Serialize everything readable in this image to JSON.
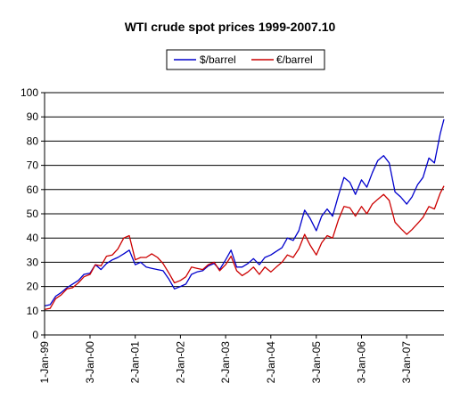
{
  "chart_data": {
    "type": "line",
    "title": "WTI crude spot prices 1999-2007.10",
    "xlabel": "",
    "ylabel": "",
    "ylim": [
      0,
      100
    ],
    "y_ticks": [
      "0",
      "10",
      "20",
      "30",
      "40",
      "50",
      "60",
      "70",
      "80",
      "90",
      "100"
    ],
    "x_ticks": [
      "1-Jan-99",
      "3-Jan-00",
      "2-Jan-01",
      "2-Jan-02",
      "2-Jan-03",
      "2-Jan-04",
      "3-Jan-05",
      "3-Jan-06",
      "3-Jan-07"
    ],
    "grid": "horizontal",
    "legend_position": "top-center",
    "x_dates": [
      "1999-01-01",
      "1999-02-15",
      "1999-04-01",
      "1999-05-15",
      "1999-07-01",
      "1999-08-15",
      "1999-10-01",
      "1999-11-15",
      "2000-01-03",
      "2000-02-15",
      "2000-04-01",
      "2000-05-15",
      "2000-07-01",
      "2000-08-15",
      "2000-10-01",
      "2000-11-15",
      "2001-01-02",
      "2001-02-15",
      "2001-04-01",
      "2001-05-15",
      "2001-07-01",
      "2001-08-15",
      "2001-10-01",
      "2001-11-15",
      "2002-01-02",
      "2002-02-15",
      "2002-04-01",
      "2002-05-15",
      "2002-07-01",
      "2002-08-15",
      "2002-10-01",
      "2002-11-15",
      "2003-01-02",
      "2003-02-15",
      "2003-04-01",
      "2003-05-15",
      "2003-07-01",
      "2003-08-15",
      "2003-10-01",
      "2003-11-15",
      "2004-01-02",
      "2004-02-15",
      "2004-04-01",
      "2004-05-15",
      "2004-07-01",
      "2004-08-15",
      "2004-10-01",
      "2004-11-15",
      "2005-01-03",
      "2005-02-15",
      "2005-04-01",
      "2005-05-15",
      "2005-07-01",
      "2005-08-15",
      "2005-10-01",
      "2005-11-15",
      "2006-01-03",
      "2006-02-15",
      "2006-04-01",
      "2006-05-15",
      "2006-07-01",
      "2006-08-15",
      "2006-10-01",
      "2006-11-15",
      "2007-01-03",
      "2007-02-15",
      "2007-04-01",
      "2007-05-15",
      "2007-07-01",
      "2007-08-15",
      "2007-10-01",
      "2007-10-31"
    ],
    "series": [
      {
        "name": "$/barrel",
        "color": "#0000cc",
        "values": [
          12,
          12.5,
          16,
          17.5,
          19.5,
          21,
          22.5,
          25,
          25.5,
          29,
          27,
          29.5,
          31,
          32,
          33.5,
          35,
          29,
          30,
          28,
          27.5,
          27,
          26.5,
          23,
          19,
          20,
          21,
          25,
          26,
          26.5,
          28.5,
          29.5,
          27,
          31,
          35,
          28,
          28,
          29.5,
          31.5,
          29,
          32,
          33,
          34.5,
          36,
          40,
          39,
          43,
          51.5,
          48,
          43,
          49,
          52,
          49,
          57.5,
          65,
          63,
          58,
          64,
          61,
          67,
          72,
          74,
          71,
          59,
          57,
          54,
          57,
          62,
          65,
          73,
          71,
          83,
          89
        ]
      },
      {
        "name": "€/barrel",
        "color": "#cc0000",
        "values": [
          10.5,
          11,
          15,
          16.5,
          19,
          19.5,
          21.5,
          24,
          25,
          29,
          28.5,
          32.5,
          33,
          35.5,
          40,
          41,
          31,
          32,
          32,
          33.5,
          32,
          29.5,
          25.5,
          21.5,
          22.5,
          24,
          28,
          27.5,
          27,
          29,
          30,
          26.5,
          29,
          32.5,
          26.5,
          24.5,
          26,
          28,
          25,
          28,
          26,
          28,
          30,
          33,
          32,
          35.5,
          41.5,
          37,
          33,
          38,
          41,
          40,
          47.5,
          53,
          52.5,
          49,
          53,
          50,
          54,
          56,
          58,
          55.5,
          46.5,
          44,
          41.5,
          43.5,
          46,
          48.5,
          53,
          52,
          58.5,
          61.5
        ]
      }
    ]
  }
}
